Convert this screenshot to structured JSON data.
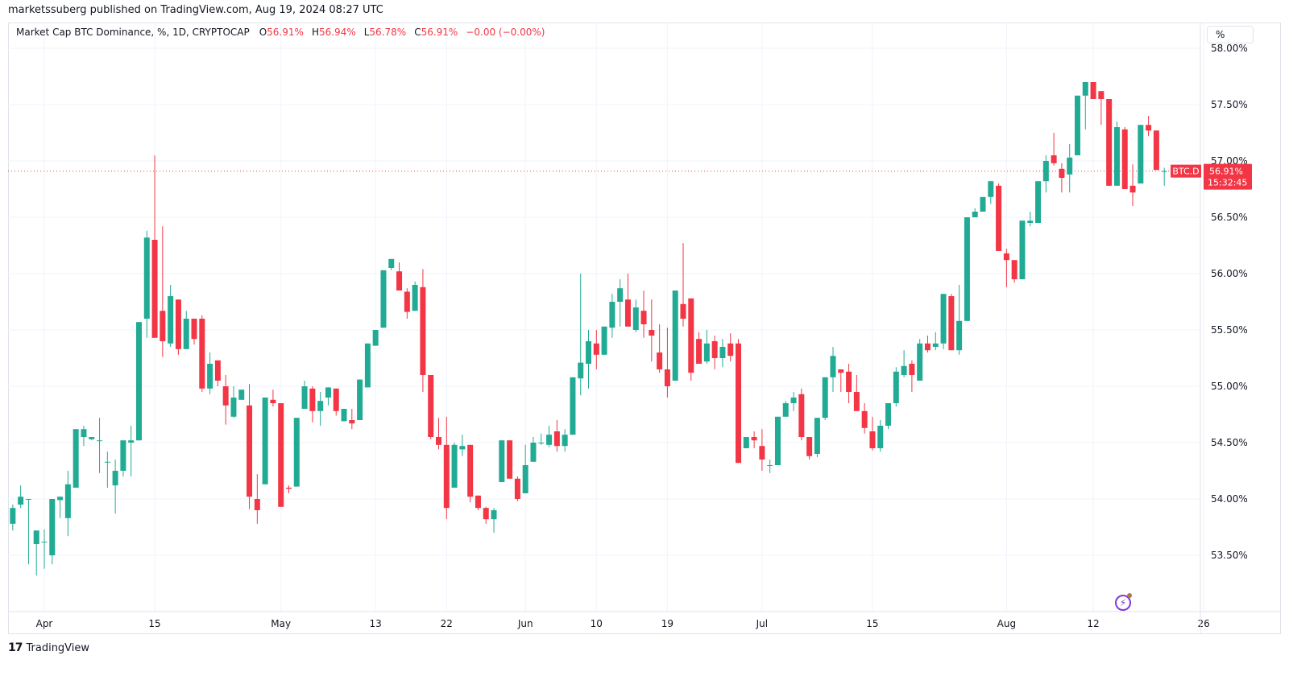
{
  "header": {
    "published": "marketssuberg published on TradingView.com, Aug 19, 2024 08:27 UTC"
  },
  "legend": {
    "symbol": "Market Cap BTC Dominance, %, 1D, CRYPTOCAP",
    "o_label": "O",
    "o_value": "56.91%",
    "h_label": "H",
    "h_value": "56.94%",
    "l_label": "L",
    "l_value": "56.78%",
    "c_label": "C",
    "c_value": "56.91%",
    "change": "−0.00 (−0.00%)"
  },
  "scale_button": {
    "label": "%"
  },
  "price_tag": {
    "ticker": "BTC.D",
    "price": "56.91%",
    "countdown": "15:32:45"
  },
  "footer": {
    "logo_mark": "17",
    "brand": "TradingView"
  },
  "colors": {
    "up": "#22ab94",
    "down": "#f23645",
    "grid": "#f0f3fa",
    "axis_text": "#131722",
    "price_line": "#f23645",
    "accent_purple": "#7e3bd6"
  },
  "chart_data": {
    "type": "candlestick",
    "title": "Market Cap BTC Dominance, %, 1D, CRYPTOCAP",
    "ylabel": "%",
    "ylim": [
      53.2,
      58.0
    ],
    "yticks": [
      "58.00%",
      "57.50%",
      "57.00%",
      "56.50%",
      "56.00%",
      "55.50%",
      "55.00%",
      "54.50%",
      "54.00%",
      "53.50%"
    ],
    "ytick_values": [
      58.0,
      57.5,
      57.0,
      56.5,
      56.0,
      55.5,
      55.0,
      54.5,
      54.0,
      53.5
    ],
    "xticks": [
      {
        "label": "Apr",
        "day": 0,
        "bold": true
      },
      {
        "label": "15",
        "day": 14
      },
      {
        "label": "May",
        "day": 30,
        "bold": true
      },
      {
        "label": "13",
        "day": 42
      },
      {
        "label": "22",
        "day": 51
      },
      {
        "label": "Jun",
        "day": 61,
        "bold": true
      },
      {
        "label": "10",
        "day": 70
      },
      {
        "label": "19",
        "day": 79
      },
      {
        "label": "Jul",
        "day": 91,
        "bold": true
      },
      {
        "label": "15",
        "day": 105
      },
      {
        "label": "Aug",
        "day": 122,
        "bold": true
      },
      {
        "label": "12",
        "day": 133
      },
      {
        "label": "26",
        "day": 147
      }
    ],
    "grid": true,
    "last_price": 56.91,
    "candles_start_day": -4,
    "candles": [
      [
        53.78,
        53.92,
        53.72,
        53.95
      ],
      [
        53.95,
        54.02,
        53.92,
        54.12
      ],
      [
        54.0,
        54.0,
        53.42,
        53.58
      ],
      [
        53.6,
        53.72,
        53.32,
        53.52
      ],
      [
        53.62,
        53.62,
        53.38,
        53.73
      ],
      [
        53.5,
        54.0,
        53.42,
        54.0
      ],
      [
        53.99,
        54.02,
        53.83,
        53.83
      ],
      [
        53.83,
        54.13,
        53.67,
        54.25
      ],
      [
        54.1,
        54.62,
        54.1,
        54.62
      ],
      [
        54.55,
        54.62,
        54.47,
        54.65
      ],
      [
        54.53,
        54.55,
        54.52,
        54.51
      ],
      [
        54.52,
        54.52,
        54.23,
        54.72
      ],
      [
        54.33,
        54.33,
        54.1,
        54.42
      ],
      [
        54.12,
        54.25,
        53.87,
        54.35
      ],
      [
        54.25,
        54.52,
        54.2,
        54.52
      ],
      [
        54.5,
        54.52,
        54.2,
        54.65
      ],
      [
        54.52,
        55.57,
        54.52,
        55.57
      ],
      [
        55.6,
        56.32,
        55.43,
        56.38
      ],
      [
        56.3,
        55.43,
        55.47,
        57.05
      ],
      [
        55.67,
        55.4,
        55.26,
        56.42
      ],
      [
        55.38,
        55.8,
        55.35,
        55.9
      ],
      [
        55.77,
        55.33,
        55.28,
        55.77
      ],
      [
        55.33,
        55.6,
        55.36,
        55.67
      ],
      [
        55.6,
        55.42,
        55.37,
        55.6
      ],
      [
        55.6,
        54.98,
        54.95,
        55.63
      ],
      [
        54.98,
        55.2,
        54.93,
        55.3
      ],
      [
        55.23,
        55.05,
        55.0,
        55.13
      ],
      [
        55.0,
        54.83,
        54.66,
        55.1
      ],
      [
        54.73,
        54.9,
        54.72,
        55.0
      ],
      [
        54.88,
        54.97,
        54.92,
        54.82
      ],
      [
        54.83,
        54.02,
        53.91,
        55.02
      ],
      [
        54.0,
        53.9,
        53.78,
        54.22
      ],
      [
        54.13,
        54.9,
        54.13,
        54.9
      ],
      [
        54.88,
        54.85,
        54.82,
        54.97
      ],
      [
        54.85,
        53.93,
        53.93,
        54.85
      ],
      [
        54.1,
        54.09,
        54.05,
        54.12
      ],
      [
        54.11,
        54.72,
        54.11,
        54.72
      ],
      [
        54.8,
        55.0,
        54.8,
        55.05
      ],
      [
        54.98,
        54.78,
        54.68,
        55.0
      ],
      [
        54.78,
        54.87,
        54.65,
        54.95
      ],
      [
        54.9,
        54.99,
        54.83,
        54.95
      ],
      [
        54.98,
        54.78,
        54.74,
        54.98
      ],
      [
        54.69,
        54.8,
        54.72,
        54.7
      ],
      [
        54.7,
        54.67,
        54.62,
        54.8
      ],
      [
        54.7,
        55.06,
        54.7,
        55.06
      ],
      [
        54.99,
        55.38,
        54.99,
        55.38
      ],
      [
        55.36,
        55.5,
        55.5,
        55.23
      ],
      [
        55.52,
        56.03,
        55.52,
        56.03
      ],
      [
        56.05,
        56.13,
        56.03,
        56.03
      ],
      [
        56.02,
        55.85,
        55.87,
        56.1
      ],
      [
        55.84,
        55.66,
        55.6,
        55.87
      ],
      [
        55.67,
        55.9,
        55.9,
        55.93
      ],
      [
        55.88,
        55.1,
        54.95,
        56.04
      ],
      [
        55.1,
        54.55,
        54.53,
        55.1
      ],
      [
        54.55,
        54.48,
        54.44,
        54.72
      ],
      [
        54.48,
        53.92,
        53.82,
        54.73
      ],
      [
        54.1,
        54.48,
        54.1,
        54.5
      ],
      [
        54.44,
        54.47,
        54.38,
        54.57
      ],
      [
        54.48,
        54.02,
        53.97,
        54.48
      ],
      [
        54.03,
        53.92,
        53.9,
        54.03
      ],
      [
        53.92,
        53.82,
        53.78,
        53.93
      ],
      [
        53.82,
        53.9,
        53.7,
        53.92
      ],
      [
        54.15,
        54.52,
        54.15,
        54.52
      ],
      [
        54.52,
        54.18,
        54.18,
        54.52
      ],
      [
        54.18,
        54.0,
        53.98,
        54.2
      ],
      [
        54.05,
        54.3,
        54.05,
        54.48
      ],
      [
        54.33,
        54.5,
        54.33,
        54.55
      ],
      [
        54.5,
        54.5,
        54.48,
        54.58
      ],
      [
        54.48,
        54.57,
        54.46,
        54.65
      ],
      [
        54.6,
        54.47,
        54.42,
        54.7
      ],
      [
        54.47,
        54.57,
        54.42,
        54.62
      ],
      [
        54.57,
        55.08,
        54.57,
        55.07
      ],
      [
        55.07,
        55.21,
        54.92,
        56.0
      ],
      [
        55.2,
        55.4,
        54.98,
        55.5
      ],
      [
        55.38,
        55.28,
        55.15,
        55.5
      ],
      [
        55.28,
        55.53,
        55.5,
        55.53
      ],
      [
        55.52,
        55.75,
        55.43,
        55.82
      ],
      [
        55.75,
        55.87,
        55.53,
        55.95
      ],
      [
        55.77,
        55.53,
        55.53,
        56.0
      ],
      [
        55.5,
        55.7,
        55.48,
        55.77
      ],
      [
        55.67,
        55.55,
        55.43,
        55.85
      ],
      [
        55.5,
        55.45,
        55.22,
        55.77
      ],
      [
        55.3,
        55.15,
        55.12,
        55.55
      ],
      [
        55.15,
        55.0,
        54.9,
        55.52
      ],
      [
        55.05,
        55.85,
        55.05,
        55.83
      ],
      [
        55.73,
        55.6,
        55.53,
        56.27
      ],
      [
        55.78,
        55.12,
        55.05,
        55.78
      ],
      [
        55.42,
        55.2,
        55.2,
        55.48
      ],
      [
        55.22,
        55.38,
        55.2,
        55.5
      ],
      [
        55.4,
        55.25,
        55.15,
        55.45
      ],
      [
        55.25,
        55.35,
        55.17,
        55.42
      ],
      [
        55.38,
        55.27,
        55.22,
        55.47
      ],
      [
        55.38,
        54.32,
        54.32,
        55.42
      ],
      [
        54.45,
        54.55,
        54.45,
        54.55
      ],
      [
        54.55,
        54.52,
        54.45,
        54.6
      ],
      [
        54.47,
        54.35,
        54.25,
        54.62
      ],
      [
        54.3,
        54.3,
        54.23,
        54.35
      ],
      [
        54.3,
        54.73,
        54.3,
        54.73
      ],
      [
        54.73,
        54.85,
        54.73,
        54.87
      ],
      [
        54.85,
        54.9,
        54.78,
        54.95
      ],
      [
        54.93,
        54.55,
        54.52,
        54.98
      ],
      [
        54.55,
        54.38,
        54.35,
        54.55
      ],
      [
        54.4,
        54.72,
        54.37,
        54.72
      ],
      [
        54.72,
        55.08,
        54.7,
        55.08
      ],
      [
        55.08,
        55.27,
        54.95,
        55.35
      ],
      [
        55.15,
        55.12,
        54.95,
        55.13
      ],
      [
        55.13,
        54.95,
        54.85,
        55.2
      ],
      [
        54.95,
        54.78,
        54.78,
        55.1
      ],
      [
        54.78,
        54.63,
        54.58,
        54.85
      ],
      [
        54.6,
        54.45,
        54.43,
        54.73
      ],
      [
        54.45,
        54.65,
        54.42,
        54.7
      ],
      [
        54.65,
        54.85,
        54.62,
        54.85
      ],
      [
        54.85,
        55.13,
        54.82,
        55.17
      ],
      [
        55.1,
        55.18,
        55.08,
        55.32
      ],
      [
        55.2,
        55.1,
        54.95,
        55.23
      ],
      [
        55.05,
        55.38,
        55.05,
        55.42
      ],
      [
        55.38,
        55.32,
        55.3,
        55.45
      ],
      [
        55.35,
        55.38,
        55.32,
        55.48
      ],
      [
        55.38,
        55.82,
        55.33,
        55.82
      ],
      [
        55.8,
        55.32,
        55.32,
        55.82
      ],
      [
        55.32,
        55.58,
        55.28,
        55.9
      ],
      [
        55.58,
        56.5,
        55.58,
        56.5
      ],
      [
        56.5,
        56.55,
        56.53,
        56.58
      ],
      [
        56.55,
        56.68,
        56.55,
        56.68
      ],
      [
        56.68,
        56.82,
        56.62,
        56.82
      ],
      [
        56.78,
        56.2,
        56.2,
        56.8
      ],
      [
        56.18,
        56.12,
        55.88,
        56.22
      ],
      [
        56.12,
        55.95,
        55.92,
        56.12
      ],
      [
        55.95,
        56.47,
        55.95,
        56.47
      ],
      [
        56.45,
        56.47,
        56.42,
        56.55
      ],
      [
        56.45,
        56.82,
        56.45,
        56.82
      ],
      [
        56.82,
        57.0,
        56.72,
        57.05
      ],
      [
        57.05,
        56.98,
        56.96,
        57.25
      ],
      [
        56.93,
        56.85,
        56.72,
        56.98
      ],
      [
        56.88,
        57.03,
        56.72,
        57.15
      ],
      [
        57.05,
        57.58,
        57.05,
        57.58
      ],
      [
        57.58,
        57.7,
        57.28,
        57.7
      ],
      [
        57.7,
        57.55,
        57.58,
        57.7
      ],
      [
        57.62,
        57.55,
        57.32,
        57.62
      ],
      [
        57.55,
        56.78,
        56.78,
        57.55
      ],
      [
        56.78,
        57.3,
        56.78,
        57.35
      ],
      [
        57.28,
        56.75,
        56.75,
        57.3
      ],
      [
        56.78,
        56.72,
        56.6,
        56.97
      ],
      [
        56.8,
        57.32,
        56.8,
        57.32
      ],
      [
        57.32,
        57.27,
        57.22,
        57.4
      ],
      [
        57.27,
        56.92,
        56.92,
        57.27
      ],
      [
        56.91,
        56.91,
        56.78,
        56.94
      ]
    ]
  }
}
